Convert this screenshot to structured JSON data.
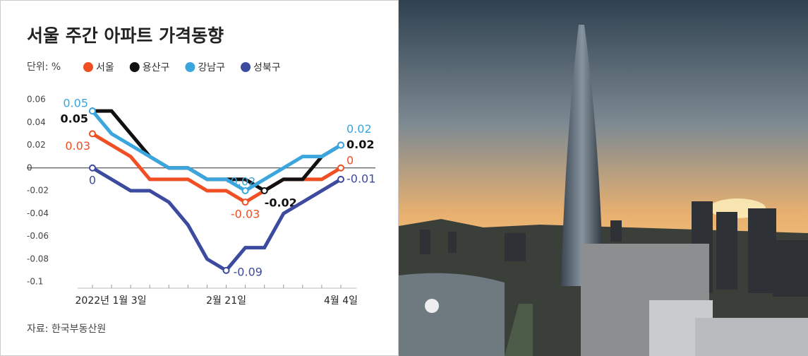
{
  "chart_data": {
    "type": "line",
    "title": "서울 주간 아파트 가격동향",
    "unit": "단위: %",
    "source": "자료: 한국부동산원",
    "categories": [
      "2022년 1월 3일",
      null,
      null,
      null,
      null,
      null,
      null,
      "2월 21일",
      null,
      null,
      null,
      null,
      null,
      "4월 4일"
    ],
    "ylim": [
      -0.1,
      0.06
    ],
    "yticks": [
      0.06,
      0.04,
      0.02,
      0,
      -0.02,
      -0.04,
      -0.06,
      -0.08,
      -0.1
    ],
    "series": [
      {
        "name": "서울",
        "color": "#f04e23",
        "values": [
          0.03,
          0.02,
          0.01,
          -0.01,
          -0.01,
          -0.01,
          -0.02,
          -0.02,
          -0.03,
          -0.02,
          -0.01,
          -0.01,
          -0.01,
          0
        ]
      },
      {
        "name": "용산구",
        "color": "#111111",
        "values": [
          0.05,
          0.05,
          0.03,
          0.01,
          0,
          0,
          -0.01,
          -0.01,
          -0.01,
          -0.02,
          -0.01,
          -0.01,
          0.01,
          0.02
        ]
      },
      {
        "name": "강남구",
        "color": "#3aa6dd",
        "values": [
          0.05,
          0.03,
          0.02,
          0.01,
          0,
          0,
          -0.01,
          -0.01,
          -0.02,
          -0.01,
          0,
          0.01,
          0.01,
          0.02
        ]
      },
      {
        "name": "성북구",
        "color": "#3c4aa0",
        "values": [
          0,
          -0.01,
          -0.02,
          -0.02,
          -0.03,
          -0.05,
          -0.08,
          -0.09,
          -0.07,
          -0.07,
          -0.04,
          -0.03,
          -0.02,
          -0.01
        ]
      }
    ]
  }
}
